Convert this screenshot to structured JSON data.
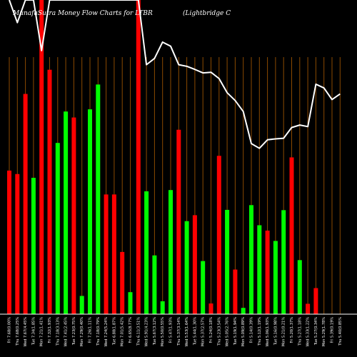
{
  "title_left": "MunafaSutra  Money Flow  Charts for LTBR",
  "title_right": "(Lightbridge   C",
  "colors": {
    "background": "#000000",
    "up": "#00ff00",
    "down": "#ff0000",
    "line": "#ffffff",
    "grid": "#8b4a00",
    "axis": "#ffffff"
  },
  "chart_data": {
    "type": "bar",
    "title": "MunafaSutra  Money Flow  Charts for LTBR (Lightbridge   C",
    "ylim": [
      0,
      100
    ],
    "grid": true,
    "categories": [
      "Fri 7.68(0.00%",
      "Thu 7.68(0.25%",
      "Wed 7.67(4.45%",
      "Tue 7.34(1.85%",
      "Mon 7.21(1.41%",
      "Fri 7.32(1.93%",
      "Thu 7.18(3.13%",
      "Wed 7.41(2.45%",
      "Tue 7.23(0.75%",
      "Mon 7.29(0.40%",
      "Fri 7.26(1.11%",
      "Thu 7.18(0.79%",
      "Wed 7.24(5.24%",
      "Tue 6.88(1.87%",
      "Mon 7.01(5.42%",
      "Fri 6.65(8.77%",
      "Thu 6.11(3.51%",
      "Wed 5.91(4.23%",
      "Tue 5.67(3.12%",
      "Mon 5.50(0.55%",
      "Fri 5.47(1.93%",
      "Thu 5.37(3.14%",
      "Wed 5.53(1.64%",
      "Tue 5.44(1.30%",
      "Mon 5.37(2.57%",
      "Fri 5.24(0.18%",
      "Thu 5.23(3.54%",
      "Wed 5.05(2.76%",
      "Tue 5.19(1.94%",
      "Mon 5.09(0.89%",
      "Fri 5.14(0.39%",
      "Thu 5.12(1.19%",
      "Wed 5.06(1.93%",
      "Tue 5.16(0.98%",
      "Mon 5.21(0.21%",
      "Fri 5.20(1.37%",
      "Thu 5.27(1.18%",
      "Wed 5.33(1.22%",
      "Tue 5.27(0.34%",
      "Mon 5.29(1.78%",
      "Fri 5.39(0.19%",
      "Thu 5.40(0.85%"
    ],
    "bar_colors": [
      "down",
      "down",
      "down",
      "up",
      "down",
      "down",
      "up",
      "up",
      "down",
      "up",
      "up",
      "up",
      "down",
      "down",
      "down",
      "up",
      "down",
      "up",
      "up",
      "up",
      "up",
      "down",
      "up",
      "down",
      "up",
      "down",
      "down",
      "up",
      "down",
      "up",
      "up",
      "up",
      "down",
      "up",
      "up",
      "down",
      "up",
      "down",
      "down",
      "down",
      "down",
      "down"
    ],
    "values": [
      45.7,
      44.6,
      70.1,
      43.4,
      100,
      77.8,
      54.5,
      64.5,
      62.6,
      5.8,
      65.2,
      73.1,
      38.1,
      38.1,
      19.8,
      7.0,
      100,
      39.1,
      18.7,
      4.1,
      39.5,
      58.7,
      29.6,
      31.5,
      16.9,
      3.4,
      50.4,
      33.2,
      14.2,
      2.0,
      34.7,
      28.3,
      26.6,
      23.3,
      33.1,
      49.9,
      17.2,
      3.3,
      8.3,
      0,
      0,
      0
    ],
    "price_line": [
      100,
      92.8,
      100,
      100,
      83.9,
      100,
      100,
      100,
      100,
      100,
      100,
      100,
      100,
      100,
      100,
      100,
      100,
      79.4,
      81.4,
      86.6,
      85.3,
      79.4,
      78.9,
      77.9,
      76.8,
      77.0,
      75.0,
      70.5,
      68.0,
      64.5,
      54.3,
      52.8,
      55.5,
      55.8,
      56.0,
      59.4,
      60.2,
      59.7,
      73.2,
      72.0,
      68.3,
      70.1
    ]
  }
}
